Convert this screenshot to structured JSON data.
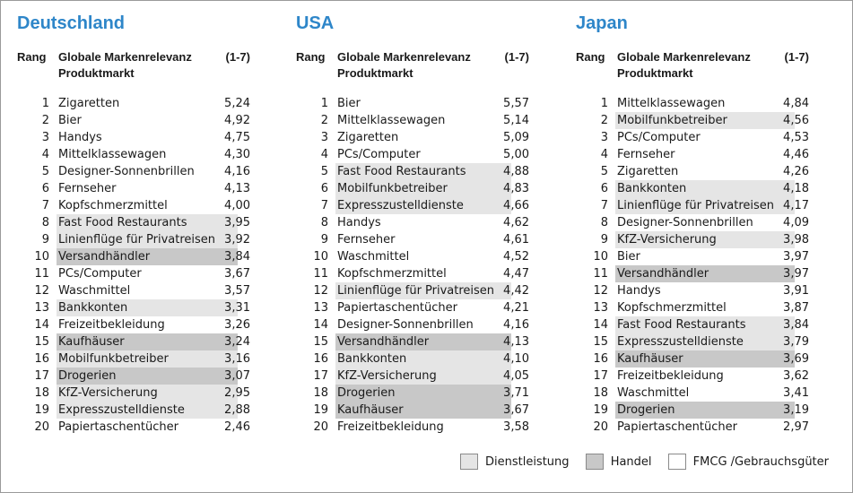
{
  "chart_data": {
    "type": "table",
    "columns_header": {
      "rank": "Rang",
      "market_line1": "Globale Markenrelevanz",
      "market_line2": "Produktmarkt",
      "scale": "(1-7)"
    },
    "legend": {
      "dienstleistung": {
        "label": "Dienstleistung",
        "color": "#e5e5e5"
      },
      "handel": {
        "label": "Handel",
        "color": "#c8c8c8"
      },
      "fmcg": {
        "label": "FMCG /Gebrauchsgüter",
        "color": "#ffffff"
      }
    },
    "countries": [
      {
        "name": "Deutschland",
        "rows": [
          {
            "rank": "1",
            "market": "Zigaretten",
            "value": "5,24",
            "cat": "f"
          },
          {
            "rank": "2",
            "market": "Bier",
            "value": "4,92",
            "cat": "f"
          },
          {
            "rank": "3",
            "market": "Handys",
            "value": "4,75",
            "cat": "f"
          },
          {
            "rank": "4",
            "market": "Mittelklassewagen",
            "value": "4,30",
            "cat": "f"
          },
          {
            "rank": "5",
            "market": "Designer-Sonnenbrillen",
            "value": "4,16",
            "cat": "f"
          },
          {
            "rank": "6",
            "market": "Fernseher",
            "value": "4,13",
            "cat": "f"
          },
          {
            "rank": "7",
            "market": "Kopfschmerzmittel",
            "value": "4,00",
            "cat": "f"
          },
          {
            "rank": "8",
            "market": "Fast Food Restaurants",
            "value": "3,95",
            "cat": "s"
          },
          {
            "rank": "9",
            "market": "Linienflüge für Privatreisen",
            "value": "3,92",
            "cat": "s"
          },
          {
            "rank": "10",
            "market": "Versandhändler",
            "value": "3,84",
            "cat": "h"
          },
          {
            "rank": "11",
            "market": "PCs/Computer",
            "value": "3,67",
            "cat": "f"
          },
          {
            "rank": "12",
            "market": "Waschmittel",
            "value": "3,57",
            "cat": "f"
          },
          {
            "rank": "13",
            "market": "Bankkonten",
            "value": "3,31",
            "cat": "s"
          },
          {
            "rank": "14",
            "market": "Freizeitbekleidung",
            "value": "3,26",
            "cat": "f"
          },
          {
            "rank": "15",
            "market": "Kaufhäuser",
            "value": "3,24",
            "cat": "h"
          },
          {
            "rank": "16",
            "market": "Mobilfunkbetreiber",
            "value": "3,16",
            "cat": "s"
          },
          {
            "rank": "17",
            "market": "Drogerien",
            "value": "3,07",
            "cat": "h"
          },
          {
            "rank": "18",
            "market": "KfZ-Versicherung",
            "value": "2,95",
            "cat": "s"
          },
          {
            "rank": "19",
            "market": "Expresszustelldienste",
            "value": "2,88",
            "cat": "s"
          },
          {
            "rank": "20",
            "market": "Papiertaschentücher",
            "value": "2,46",
            "cat": "f"
          }
        ]
      },
      {
        "name": "USA",
        "rows": [
          {
            "rank": "1",
            "market": "Bier",
            "value": "5,57",
            "cat": "f"
          },
          {
            "rank": "2",
            "market": "Mittelklassewagen",
            "value": "5,14",
            "cat": "f"
          },
          {
            "rank": "3",
            "market": "Zigaretten",
            "value": "5,09",
            "cat": "f"
          },
          {
            "rank": "4",
            "market": "PCs/Computer",
            "value": "5,00",
            "cat": "f"
          },
          {
            "rank": "5",
            "market": "Fast Food Restaurants",
            "value": "4,88",
            "cat": "s"
          },
          {
            "rank": "6",
            "market": "Mobilfunkbetreiber",
            "value": "4,83",
            "cat": "s"
          },
          {
            "rank": "7",
            "market": "Expresszustelldienste",
            "value": "4,66",
            "cat": "s"
          },
          {
            "rank": "8",
            "market": "Handys",
            "value": "4,62",
            "cat": "f"
          },
          {
            "rank": "9",
            "market": "Fernseher",
            "value": "4,61",
            "cat": "f"
          },
          {
            "rank": "10",
            "market": "Waschmittel",
            "value": "4,52",
            "cat": "f"
          },
          {
            "rank": "11",
            "market": "Kopfschmerzmittel",
            "value": "4,47",
            "cat": "f"
          },
          {
            "rank": "12",
            "market": "Linienflüge für Privatreisen",
            "value": "4,42",
            "cat": "s"
          },
          {
            "rank": "13",
            "market": "Papiertaschentücher",
            "value": "4,21",
            "cat": "f"
          },
          {
            "rank": "14",
            "market": "Designer-Sonnenbrillen",
            "value": "4,16",
            "cat": "f"
          },
          {
            "rank": "15",
            "market": "Versandhändler",
            "value": "4,13",
            "cat": "h"
          },
          {
            "rank": "16",
            "market": "Bankkonten",
            "value": "4,10",
            "cat": "s"
          },
          {
            "rank": "17",
            "market": "KfZ-Versicherung",
            "value": "4,05",
            "cat": "s"
          },
          {
            "rank": "18",
            "market": "Drogerien",
            "value": "3,71",
            "cat": "h"
          },
          {
            "rank": "19",
            "market": "Kaufhäuser",
            "value": "3,67",
            "cat": "h"
          },
          {
            "rank": "20",
            "market": "Freizeitbekleidung",
            "value": "3,58",
            "cat": "f"
          }
        ]
      },
      {
        "name": "Japan",
        "rows": [
          {
            "rank": "1",
            "market": "Mittelklassewagen",
            "value": "4,84",
            "cat": "f"
          },
          {
            "rank": "2",
            "market": "Mobilfunkbetreiber",
            "value": "4,56",
            "cat": "s"
          },
          {
            "rank": "3",
            "market": "PCs/Computer",
            "value": "4,53",
            "cat": "f"
          },
          {
            "rank": "4",
            "market": "Fernseher",
            "value": "4,46",
            "cat": "f"
          },
          {
            "rank": "5",
            "market": "Zigaretten",
            "value": "4,26",
            "cat": "f"
          },
          {
            "rank": "6",
            "market": "Bankkonten",
            "value": "4,18",
            "cat": "s"
          },
          {
            "rank": "7",
            "market": "Linienflüge für Privatreisen",
            "value": "4,17",
            "cat": "s"
          },
          {
            "rank": "8",
            "market": "Designer-Sonnenbrillen",
            "value": "4,09",
            "cat": "f"
          },
          {
            "rank": "9",
            "market": "KfZ-Versicherung",
            "value": "3,98",
            "cat": "s"
          },
          {
            "rank": "10",
            "market": "Bier",
            "value": "3,97",
            "cat": "f"
          },
          {
            "rank": "11",
            "market": "Versandhändler",
            "value": "3,97",
            "cat": "h"
          },
          {
            "rank": "12",
            "market": "Handys",
            "value": "3,91",
            "cat": "f"
          },
          {
            "rank": "13",
            "market": "Kopfschmerzmittel",
            "value": "3,87",
            "cat": "f"
          },
          {
            "rank": "14",
            "market": "Fast Food Restaurants",
            "value": "3,84",
            "cat": "s"
          },
          {
            "rank": "15",
            "market": "Expresszustelldienste",
            "value": "3,79",
            "cat": "s"
          },
          {
            "rank": "16",
            "market": "Kaufhäuser",
            "value": "3,69",
            "cat": "h"
          },
          {
            "rank": "17",
            "market": "Freizeitbekleidung",
            "value": "3,62",
            "cat": "f"
          },
          {
            "rank": "18",
            "market": "Waschmittel",
            "value": "3,41",
            "cat": "f"
          },
          {
            "rank": "19",
            "market": "Drogerien",
            "value": "3,19",
            "cat": "h"
          },
          {
            "rank": "20",
            "market": "Papiertaschentücher",
            "value": "2,97",
            "cat": "f"
          }
        ]
      }
    ]
  }
}
